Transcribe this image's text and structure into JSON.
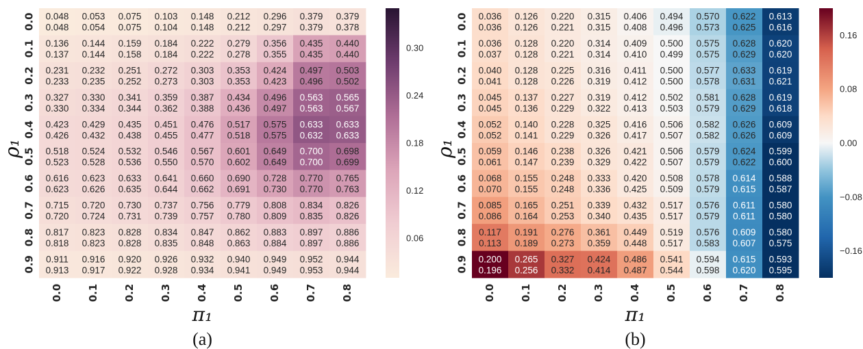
{
  "chart_data": [
    {
      "type": "heatmap",
      "caption": "(a)",
      "xlabel": "π₁",
      "ylabel": "ρ₁",
      "x_ticks": [
        "0.0",
        "0.1",
        "0.2",
        "0.3",
        "0.4",
        "0.5",
        "0.6",
        "0.7",
        "0.8"
      ],
      "y_ticks": [
        "0.0",
        "0.1",
        "0.2",
        "0.3",
        "0.4",
        "0.5",
        "0.6",
        "0.7",
        "0.8",
        "0.9"
      ],
      "colormap": "rocket_r",
      "color_range": [
        0.01,
        0.35
      ],
      "colorbar_ticks": [
        "0.06",
        "0.12",
        "0.18",
        "0.24",
        "0.30"
      ],
      "colorbar_tick_values": [
        0.06,
        0.12,
        0.18,
        0.24,
        0.3
      ],
      "values_top": [
        [
          "0.048",
          "0.053",
          "0.075",
          "0.103",
          "0.148",
          "0.212",
          "0.296",
          "0.379",
          "0.379"
        ],
        [
          "0.136",
          "0.144",
          "0.159",
          "0.184",
          "0.222",
          "0.279",
          "0.356",
          "0.435",
          "0.440"
        ],
        [
          "0.231",
          "0.232",
          "0.251",
          "0.272",
          "0.303",
          "0.353",
          "0.424",
          "0.497",
          "0.503"
        ],
        [
          "0.327",
          "0.330",
          "0.341",
          "0.359",
          "0.387",
          "0.434",
          "0.496",
          "0.563",
          "0.565"
        ],
        [
          "0.423",
          "0.429",
          "0.435",
          "0.451",
          "0.476",
          "0.517",
          "0.575",
          "0.633",
          "0.633"
        ],
        [
          "0.518",
          "0.524",
          "0.532",
          "0.546",
          "0.567",
          "0.601",
          "0.649",
          "0.700",
          "0.698"
        ],
        [
          "0.616",
          "0.623",
          "0.633",
          "0.641",
          "0.660",
          "0.690",
          "0.728",
          "0.770",
          "0.765"
        ],
        [
          "0.715",
          "0.720",
          "0.730",
          "0.737",
          "0.756",
          "0.779",
          "0.808",
          "0.834",
          "0.826"
        ],
        [
          "0.817",
          "0.823",
          "0.828",
          "0.834",
          "0.847",
          "0.862",
          "0.883",
          "0.897",
          "0.886"
        ],
        [
          "0.911",
          "0.916",
          "0.920",
          "0.926",
          "0.932",
          "0.940",
          "0.949",
          "0.952",
          "0.944"
        ]
      ],
      "values_bottom": [
        [
          "0.048",
          "0.054",
          "0.075",
          "0.104",
          "0.148",
          "0.212",
          "0.297",
          "0.379",
          "0.378"
        ],
        [
          "0.137",
          "0.144",
          "0.158",
          "0.184",
          "0.222",
          "0.278",
          "0.355",
          "0.435",
          "0.440"
        ],
        [
          "0.233",
          "0.235",
          "0.252",
          "0.273",
          "0.303",
          "0.353",
          "0.423",
          "0.496",
          "0.502"
        ],
        [
          "0.330",
          "0.334",
          "0.344",
          "0.362",
          "0.388",
          "0.436",
          "0.497",
          "0.563",
          "0.567"
        ],
        [
          "0.426",
          "0.432",
          "0.438",
          "0.455",
          "0.477",
          "0.518",
          "0.575",
          "0.632",
          "0.633"
        ],
        [
          "0.523",
          "0.528",
          "0.536",
          "0.550",
          "0.570",
          "0.602",
          "0.649",
          "0.700",
          "0.699"
        ],
        [
          "0.623",
          "0.626",
          "0.635",
          "0.644",
          "0.662",
          "0.691",
          "0.730",
          "0.770",
          "0.763"
        ],
        [
          "0.720",
          "0.724",
          "0.731",
          "0.739",
          "0.757",
          "0.780",
          "0.809",
          "0.835",
          "0.826"
        ],
        [
          "0.818",
          "0.823",
          "0.828",
          "0.835",
          "0.848",
          "0.863",
          "0.884",
          "0.897",
          "0.886"
        ],
        [
          "0.913",
          "0.917",
          "0.922",
          "0.928",
          "0.934",
          "0.941",
          "0.949",
          "0.953",
          "0.944"
        ]
      ],
      "color_values": [
        [
          0.011,
          0.012,
          0.013,
          0.016,
          0.019,
          0.023,
          0.028,
          0.035,
          0.03
        ],
        [
          0.024,
          0.025,
          0.03,
          0.036,
          0.042,
          0.055,
          0.09,
          0.15,
          0.155
        ],
        [
          0.036,
          0.037,
          0.045,
          0.055,
          0.07,
          0.095,
          0.14,
          0.2,
          0.205
        ],
        [
          0.045,
          0.048,
          0.055,
          0.068,
          0.09,
          0.13,
          0.18,
          0.23,
          0.235
        ],
        [
          0.05,
          0.053,
          0.06,
          0.075,
          0.1,
          0.15,
          0.2,
          0.245,
          0.24
        ],
        [
          0.05,
          0.053,
          0.06,
          0.075,
          0.1,
          0.145,
          0.19,
          0.225,
          0.215
        ],
        [
          0.048,
          0.05,
          0.057,
          0.07,
          0.09,
          0.12,
          0.15,
          0.17,
          0.16
        ],
        [
          0.04,
          0.043,
          0.05,
          0.058,
          0.07,
          0.085,
          0.1,
          0.11,
          0.1
        ],
        [
          0.03,
          0.032,
          0.036,
          0.042,
          0.05,
          0.06,
          0.068,
          0.075,
          0.068
        ],
        [
          0.018,
          0.019,
          0.021,
          0.024,
          0.028,
          0.032,
          0.036,
          0.038,
          0.034
        ]
      ]
    },
    {
      "type": "heatmap",
      "caption": "(b)",
      "xlabel": "π₁",
      "ylabel": "ρ₁",
      "x_ticks": [
        "0.0",
        "0.1",
        "0.2",
        "0.3",
        "0.4",
        "0.5",
        "0.6",
        "0.7",
        "0.8"
      ],
      "y_ticks": [
        "0.0",
        "0.1",
        "0.2",
        "0.3",
        "0.4",
        "0.5",
        "0.6",
        "0.7",
        "0.8",
        "0.9"
      ],
      "colormap": "RdBu_r",
      "color_range": [
        -0.2,
        0.2
      ],
      "colorbar_ticks": [
        "0.16",
        "0.08",
        "0.00",
        "−0.08",
        "−0.16"
      ],
      "colorbar_tick_values": [
        0.16,
        0.08,
        0.0,
        -0.08,
        -0.16
      ],
      "values_top": [
        [
          "0.036",
          "0.126",
          "0.220",
          "0.315",
          "0.406",
          "0.494",
          "0.570",
          "0.622",
          "0.613"
        ],
        [
          "0.036",
          "0.128",
          "0.220",
          "0.314",
          "0.409",
          "0.500",
          "0.575",
          "0.628",
          "0.620"
        ],
        [
          "0.040",
          "0.128",
          "0.225",
          "0.316",
          "0.411",
          "0.500",
          "0.577",
          "0.633",
          "0.619"
        ],
        [
          "0.045",
          "0.137",
          "0.227",
          "0.319",
          "0.412",
          "0.502",
          "0.581",
          "0.628",
          "0.619"
        ],
        [
          "0.052",
          "0.140",
          "0.228",
          "0.325",
          "0.416",
          "0.506",
          "0.582",
          "0.626",
          "0.609"
        ],
        [
          "0.059",
          "0.146",
          "0.238",
          "0.326",
          "0.421",
          "0.506",
          "0.579",
          "0.624",
          "0.599"
        ],
        [
          "0.068",
          "0.155",
          "0.248",
          "0.333",
          "0.420",
          "0.508",
          "0.578",
          "0.614",
          "0.588"
        ],
        [
          "0.085",
          "0.165",
          "0.251",
          "0.339",
          "0.432",
          "0.517",
          "0.576",
          "0.611",
          "0.580"
        ],
        [
          "0.117",
          "0.191",
          "0.276",
          "0.361",
          "0.449",
          "0.519",
          "0.576",
          "0.609",
          "0.580"
        ],
        [
          "0.200",
          "0.265",
          "0.327",
          "0.424",
          "0.486",
          "0.541",
          "0.594",
          "0.615",
          "0.593"
        ]
      ],
      "values_bottom": [
        [
          "0.036",
          "0.126",
          "0.221",
          "0.315",
          "0.408",
          "0.496",
          "0.573",
          "0.625",
          "0.616"
        ],
        [
          "0.037",
          "0.128",
          "0.221",
          "0.314",
          "0.410",
          "0.499",
          "0.575",
          "0.629",
          "0.620"
        ],
        [
          "0.041",
          "0.128",
          "0.226",
          "0.319",
          "0.412",
          "0.500",
          "0.578",
          "0.631",
          "0.621"
        ],
        [
          "0.045",
          "0.136",
          "0.229",
          "0.322",
          "0.413",
          "0.503",
          "0.579",
          "0.629",
          "0.618"
        ],
        [
          "0.052",
          "0.141",
          "0.229",
          "0.326",
          "0.417",
          "0.507",
          "0.582",
          "0.626",
          "0.609"
        ],
        [
          "0.061",
          "0.147",
          "0.239",
          "0.329",
          "0.422",
          "0.507",
          "0.579",
          "0.622",
          "0.600"
        ],
        [
          "0.070",
          "0.155",
          "0.248",
          "0.336",
          "0.425",
          "0.509",
          "0.579",
          "0.615",
          "0.587"
        ],
        [
          "0.086",
          "0.164",
          "0.253",
          "0.340",
          "0.435",
          "0.517",
          "0.579",
          "0.611",
          "0.580"
        ],
        [
          "0.113",
          "0.189",
          "0.273",
          "0.359",
          "0.448",
          "0.517",
          "0.583",
          "0.607",
          "0.575"
        ],
        [
          "0.196",
          "0.256",
          "0.332",
          "0.414",
          "0.487",
          "0.544",
          "0.598",
          "0.620",
          "0.595"
        ]
      ],
      "color_values": [
        [
          0.036,
          0.026,
          0.02,
          0.015,
          0.006,
          -0.006,
          -0.03,
          -0.078,
          -0.187
        ],
        [
          0.036,
          0.028,
          0.02,
          0.014,
          0.009,
          0.0,
          -0.025,
          -0.072,
          -0.18
        ],
        [
          0.04,
          0.028,
          0.025,
          0.016,
          0.011,
          0.0,
          -0.023,
          -0.067,
          -0.181
        ],
        [
          0.045,
          0.037,
          0.027,
          0.019,
          0.012,
          0.002,
          -0.019,
          -0.072,
          -0.181
        ],
        [
          0.052,
          0.04,
          0.028,
          0.025,
          0.016,
          0.006,
          -0.018,
          -0.074,
          -0.191
        ],
        [
          0.059,
          0.046,
          0.038,
          0.026,
          0.021,
          0.006,
          -0.021,
          -0.076,
          -0.201
        ],
        [
          0.068,
          0.055,
          0.048,
          0.033,
          0.02,
          0.008,
          -0.022,
          -0.086,
          -0.212
        ],
        [
          0.085,
          0.065,
          0.051,
          0.039,
          0.032,
          0.017,
          -0.024,
          -0.089,
          -0.22
        ],
        [
          0.117,
          0.091,
          0.076,
          0.061,
          0.049,
          0.019,
          -0.024,
          -0.091,
          -0.22
        ],
        [
          0.2,
          0.165,
          0.127,
          0.124,
          0.086,
          0.041,
          -0.006,
          -0.085,
          -0.207
        ]
      ]
    }
  ]
}
